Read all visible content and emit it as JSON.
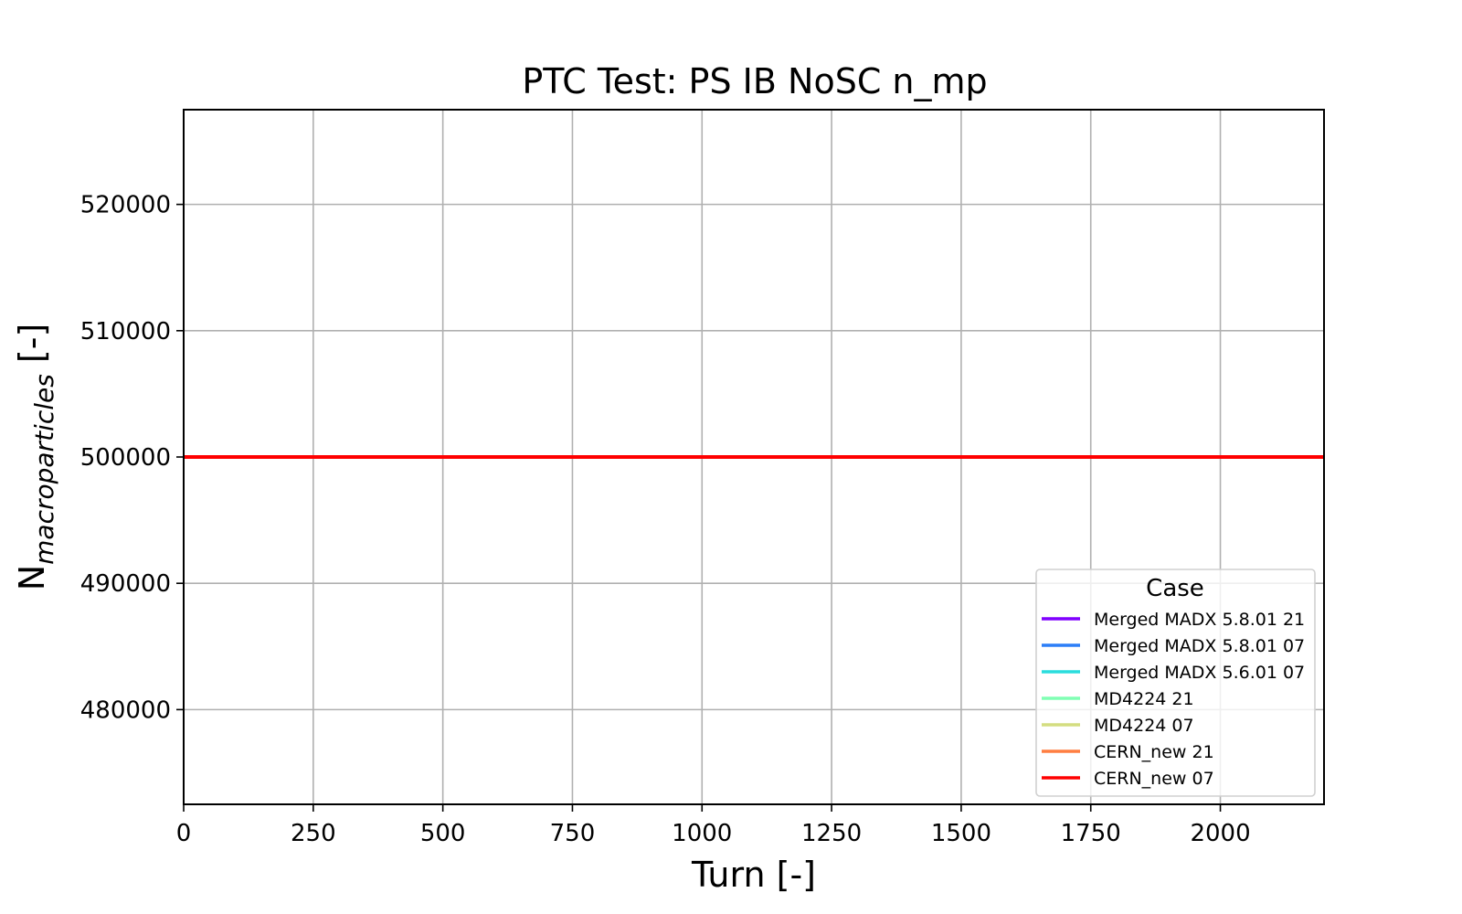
{
  "chart_data": {
    "type": "line",
    "title": "PTC Test: PS IB NoSC n_mp",
    "xlabel": "Turn [-]",
    "ylabel_main": "N",
    "ylabel_sub": "macroparticles",
    "ylabel_suffix": " [-]",
    "xlim": [
      0,
      2200
    ],
    "ylim": [
      472500,
      527500
    ],
    "xticks": [
      0,
      250,
      500,
      750,
      1000,
      1250,
      1500,
      1750,
      2000
    ],
    "yticks": [
      480000,
      490000,
      500000,
      510000,
      520000
    ],
    "grid": true,
    "legend": {
      "title": "Case",
      "placement": "lower-right"
    },
    "series": [
      {
        "name": "Merged MADX 5.8.01 21",
        "color": "#8000ff",
        "x": [
          0,
          2200
        ],
        "y": [
          500000,
          500000
        ]
      },
      {
        "name": "Merged MADX 5.8.01 07",
        "color": "#2c7ef7",
        "x": [
          0,
          2200
        ],
        "y": [
          500000,
          500000
        ]
      },
      {
        "name": "Merged MADX 5.6.01 07",
        "color": "#2adddd",
        "x": [
          0,
          2200
        ],
        "y": [
          500000,
          500000
        ]
      },
      {
        "name": "MD4224 21",
        "color": "#80ffb4",
        "x": [
          0,
          2200
        ],
        "y": [
          500000,
          500000
        ]
      },
      {
        "name": "MD4224 07",
        "color": "#d4dd80",
        "x": [
          0,
          2200
        ],
        "y": [
          500000,
          500000
        ]
      },
      {
        "name": "CERN_new 21",
        "color": "#ff7e41",
        "x": [
          0,
          2200
        ],
        "y": [
          500000,
          500000
        ]
      },
      {
        "name": "CERN_new 07",
        "color": "#ff0000",
        "x": [
          0,
          2200
        ],
        "y": [
          500000,
          500000
        ]
      }
    ]
  }
}
